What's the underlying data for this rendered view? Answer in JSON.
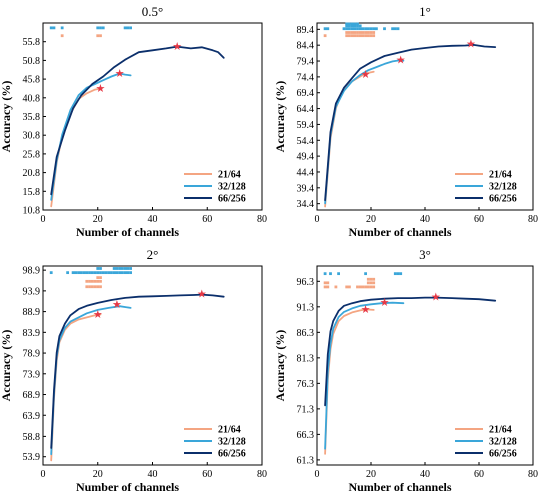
{
  "colors": {
    "21/64": "#f4a582",
    "32/128": "#3aa6d9",
    "66/256": "#0b2f6b",
    "marker": "#e63946"
  },
  "chart_data": [
    {
      "type": "line",
      "title": "0.5°",
      "xlabel": "Number of channels",
      "ylabel": "Accuracy (%)",
      "xlim": [
        0,
        80
      ],
      "ylim": [
        10.8,
        60.8
      ],
      "xticks": [
        0,
        20,
        40,
        60,
        80
      ],
      "yticks": [
        10.8,
        15.8,
        20.8,
        25.8,
        30.8,
        35.8,
        40.8,
        45.8,
        50.8,
        55.8
      ],
      "grid": false,
      "legend": "bottom-right",
      "series": [
        {
          "name": "21/64",
          "x": [
            3,
            5,
            7,
            10,
            13,
            16,
            19,
            21
          ],
          "y": [
            11.8,
            23.5,
            30.5,
            36.5,
            40.5,
            42,
            43,
            43.3
          ]
        },
        {
          "name": "32/128",
          "x": [
            3,
            5,
            7,
            10,
            13,
            16,
            19,
            22,
            25,
            28,
            30,
            32
          ],
          "y": [
            13.5,
            24,
            31,
            37.5,
            41.5,
            43.5,
            44.5,
            45.5,
            46.5,
            47.3,
            47,
            46.8
          ]
        },
        {
          "name": "66/256",
          "x": [
            3,
            5,
            8,
            11,
            14,
            18,
            22,
            26,
            30,
            35,
            40,
            45,
            49,
            54,
            58,
            62,
            64,
            66
          ],
          "y": [
            15,
            25,
            32,
            38,
            41.5,
            44.5,
            46.5,
            49,
            51,
            53,
            53.5,
            54,
            54.5,
            54,
            54.3,
            53.5,
            53,
            51.5
          ]
        }
      ],
      "best_points": [
        {
          "series": "21/64",
          "x": 21,
          "y": 43.3
        },
        {
          "series": "32/128",
          "x": 28,
          "y": 47.3
        },
        {
          "series": "66/256",
          "x": 49,
          "y": 54.5
        }
      ],
      "sig_markers": [
        {
          "series": "21/64",
          "x": [
            7,
            20,
            21
          ],
          "y": [
            57.4,
            57.4,
            57.4
          ]
        },
        {
          "series": "32/128",
          "x": [
            3,
            4,
            7,
            20,
            21,
            22,
            30,
            31,
            32
          ],
          "y": [
            59.5,
            59.5,
            59.5,
            59.5,
            59.5,
            59.5,
            59.5,
            59.5,
            59.5
          ]
        }
      ]
    },
    {
      "type": "line",
      "title": "1°",
      "xlabel": "Number of channels",
      "ylabel": "Accuracy (%)",
      "xlim": [
        0,
        80
      ],
      "ylim": [
        32.4,
        91.4
      ],
      "xticks": [
        0,
        20,
        40,
        60,
        80
      ],
      "yticks": [
        34.4,
        39.4,
        44.4,
        49.4,
        54.4,
        59.4,
        64.4,
        69.4,
        74.4,
        79.4,
        84.4,
        89.4
      ],
      "grid": false,
      "legend": "bottom-right",
      "series": [
        {
          "name": "21/64",
          "x": [
            3,
            5,
            7,
            9,
            11,
            13,
            15,
            18,
            21
          ],
          "y": [
            33.5,
            55,
            64.5,
            69,
            71.5,
            73,
            74,
            75.5,
            76
          ]
        },
        {
          "name": "32/128",
          "x": [
            3,
            5,
            7,
            10,
            13,
            16,
            19,
            22,
            25,
            28,
            31,
            32
          ],
          "y": [
            34.5,
            56,
            65,
            70,
            73,
            75,
            76.5,
            77.5,
            78.5,
            79.3,
            79.7,
            79.5
          ]
        },
        {
          "name": "66/256",
          "x": [
            3,
            5,
            7,
            10,
            13,
            16,
            20,
            25,
            30,
            35,
            40,
            45,
            50,
            55,
            58,
            62,
            66
          ],
          "y": [
            35.5,
            57,
            66,
            71,
            74,
            77,
            79,
            81,
            82,
            83,
            83.5,
            84,
            84.2,
            84.3,
            84.5,
            84,
            83.8
          ]
        }
      ],
      "best_points": [
        {
          "series": "21/64",
          "x": 18,
          "y": 75.2
        },
        {
          "series": "32/128",
          "x": 31,
          "y": 79.8
        },
        {
          "series": "66/256",
          "x": 57,
          "y": 84.7
        }
      ],
      "sig_markers": [
        {
          "series": "21/64",
          "x": [
            3,
            11,
            12,
            13,
            14,
            15,
            16,
            17,
            18,
            19,
            20,
            21,
            11,
            12,
            13,
            14,
            15,
            16,
            17,
            18,
            19,
            20,
            21
          ],
          "y": [
            87.4,
            87.4,
            87.4,
            87.4,
            87.4,
            87.4,
            87.4,
            87.4,
            87.4,
            87.4,
            87.4,
            87.4,
            88.4,
            88.4,
            88.4,
            88.4,
            88.4,
            88.4,
            88.4,
            88.4,
            88.4,
            88.4,
            88.4
          ]
        },
        {
          "series": "32/128",
          "x": [
            3,
            4,
            10,
            11,
            12,
            13,
            14,
            15,
            16,
            17,
            18,
            19,
            20,
            21,
            22,
            25,
            28,
            29,
            30,
            11,
            12,
            13,
            14,
            15,
            16,
            11,
            12,
            13,
            14,
            15
          ],
          "y": [
            89.6,
            89.6,
            89.6,
            89.6,
            89.6,
            89.6,
            89.6,
            89.6,
            89.6,
            89.6,
            89.6,
            89.6,
            89.6,
            89.6,
            89.6,
            89.6,
            89.6,
            89.6,
            89.6,
            90.5,
            90.5,
            90.5,
            90.5,
            90.5,
            90.5,
            91.1,
            91.1,
            91.1,
            91.1,
            91.1
          ]
        }
      ]
    },
    {
      "type": "line",
      "title": "2°",
      "xlabel": "Number of channels",
      "ylabel": "Accuracy (%)",
      "xlim": [
        0,
        80
      ],
      "ylim": [
        51.9,
        99.9
      ],
      "xticks": [
        0,
        20,
        40,
        60,
        80
      ],
      "yticks": [
        53.9,
        58.8,
        63.9,
        68.9,
        73.9,
        78.9,
        83.9,
        88.9,
        93.9,
        98.9
      ],
      "grid": false,
      "legend": "bottom-right",
      "series": [
        {
          "name": "21/64",
          "x": [
            3,
            4,
            5,
            6,
            8,
            10,
            13,
            16,
            19,
            21
          ],
          "y": [
            53,
            68,
            77,
            81.5,
            84.5,
            86,
            87,
            87.5,
            88,
            88.2
          ]
        },
        {
          "name": "32/128",
          "x": [
            3,
            4,
            5,
            6,
            8,
            10,
            13,
            16,
            20,
            24,
            28,
            32
          ],
          "y": [
            54.5,
            69,
            78,
            82,
            85,
            86.5,
            87.5,
            88.5,
            89.3,
            89.8,
            90.2,
            89.8
          ]
        },
        {
          "name": "66/256",
          "x": [
            3,
            4,
            5,
            6,
            8,
            10,
            13,
            16,
            20,
            25,
            30,
            35,
            40,
            45,
            50,
            55,
            58,
            62,
            66
          ],
          "y": [
            56,
            70,
            79,
            83,
            86,
            88,
            89.5,
            90.3,
            91,
            91.7,
            92.2,
            92.5,
            92.6,
            92.7,
            92.8,
            92.9,
            93,
            92.8,
            92.5
          ]
        }
      ],
      "best_points": [
        {
          "series": "21/64",
          "x": 20,
          "y": 88.2
        },
        {
          "series": "32/128",
          "x": 27,
          "y": 90.6
        },
        {
          "series": "66/256",
          "x": 58,
          "y": 93.2
        }
      ],
      "sig_markers": [
        {
          "series": "21/64",
          "x": [
            16,
            17,
            18,
            19,
            20,
            21,
            16,
            17,
            18,
            19,
            20,
            21,
            20,
            21
          ],
          "y": [
            94.9,
            94.9,
            94.9,
            94.9,
            94.9,
            94.9,
            96.2,
            96.2,
            96.2,
            96.2,
            96.2,
            96.2,
            97.1,
            97.1
          ]
        },
        {
          "series": "32/128",
          "x": [
            3,
            9,
            11,
            12,
            13,
            14,
            15,
            16,
            17,
            18,
            19,
            20,
            21,
            22,
            23,
            24,
            25,
            26,
            27,
            28,
            29,
            30,
            31,
            32,
            20,
            21,
            26,
            27,
            28,
            29,
            30,
            31,
            32
          ],
          "y": [
            98.3,
            98.3,
            98.3,
            98.3,
            98.3,
            98.3,
            98.3,
            98.3,
            98.3,
            98.3,
            98.3,
            98.3,
            98.3,
            98.3,
            98.3,
            98.3,
            98.3,
            98.3,
            98.3,
            98.3,
            98.3,
            98.3,
            98.3,
            98.3,
            99.3,
            99.3,
            99.3,
            99.3,
            99.3,
            99.3,
            99.3,
            99.3,
            99.3
          ]
        }
      ]
    },
    {
      "type": "line",
      "title": "3°",
      "xlabel": "Number of channels",
      "ylabel": "Accuracy (%)",
      "xlim": [
        0,
        80
      ],
      "ylim": [
        60.3,
        99.3
      ],
      "xticks": [
        0,
        20,
        40,
        60,
        80
      ],
      "yticks": [
        61.3,
        66.3,
        71.3,
        76.3,
        81.3,
        86.3,
        91.3,
        96.3
      ],
      "grid": false,
      "legend": "bottom-right",
      "series": [
        {
          "name": "21/64",
          "x": [
            3,
            4,
            5,
            6,
            8,
            10,
            13,
            16,
            18,
            21
          ],
          "y": [
            62.5,
            77,
            83,
            86,
            88.5,
            89.5,
            90.2,
            90.6,
            90.8,
            90.7
          ]
        },
        {
          "name": "32/128",
          "x": [
            3,
            4,
            5,
            6,
            8,
            10,
            13,
            16,
            20,
            24,
            28,
            32
          ],
          "y": [
            63.5,
            78.5,
            84,
            87,
            89.3,
            90.3,
            91,
            91.5,
            91.8,
            92,
            92.1,
            92
          ]
        },
        {
          "name": "66/256",
          "x": [
            3,
            4,
            5,
            6,
            8,
            10,
            13,
            16,
            20,
            25,
            30,
            35,
            40,
            44,
            50,
            55,
            60,
            66
          ],
          "y": [
            72,
            82,
            86.5,
            88.5,
            90.5,
            91.5,
            92,
            92.4,
            92.7,
            92.9,
            93,
            93,
            93.1,
            93.1,
            93,
            92.9,
            92.8,
            92.5
          ]
        }
      ],
      "best_points": [
        {
          "series": "21/64",
          "x": 18,
          "y": 90.8
        },
        {
          "series": "32/128",
          "x": 25,
          "y": 92.1
        },
        {
          "series": "66/256",
          "x": 44,
          "y": 93.2
        }
      ],
      "sig_markers": [
        {
          "series": "21/64",
          "x": [
            3,
            4,
            3,
            4,
            7,
            11,
            12,
            15,
            16,
            17,
            18,
            19,
            20,
            21,
            19,
            20,
            21,
            19,
            20,
            21
          ],
          "y": [
            96,
            96,
            95.2,
            95.2,
            95.2,
            95.2,
            95.2,
            95.2,
            95.2,
            95.2,
            95.2,
            95.2,
            95.2,
            95.2,
            96,
            96,
            96,
            96.7,
            96.7,
            96.7
          ]
        },
        {
          "series": "32/128",
          "x": [
            3,
            5,
            8,
            18,
            29,
            30,
            31
          ],
          "y": [
            97.8,
            97.8,
            97.8,
            97.8,
            97.8,
            97.8,
            97.8
          ]
        }
      ]
    }
  ]
}
